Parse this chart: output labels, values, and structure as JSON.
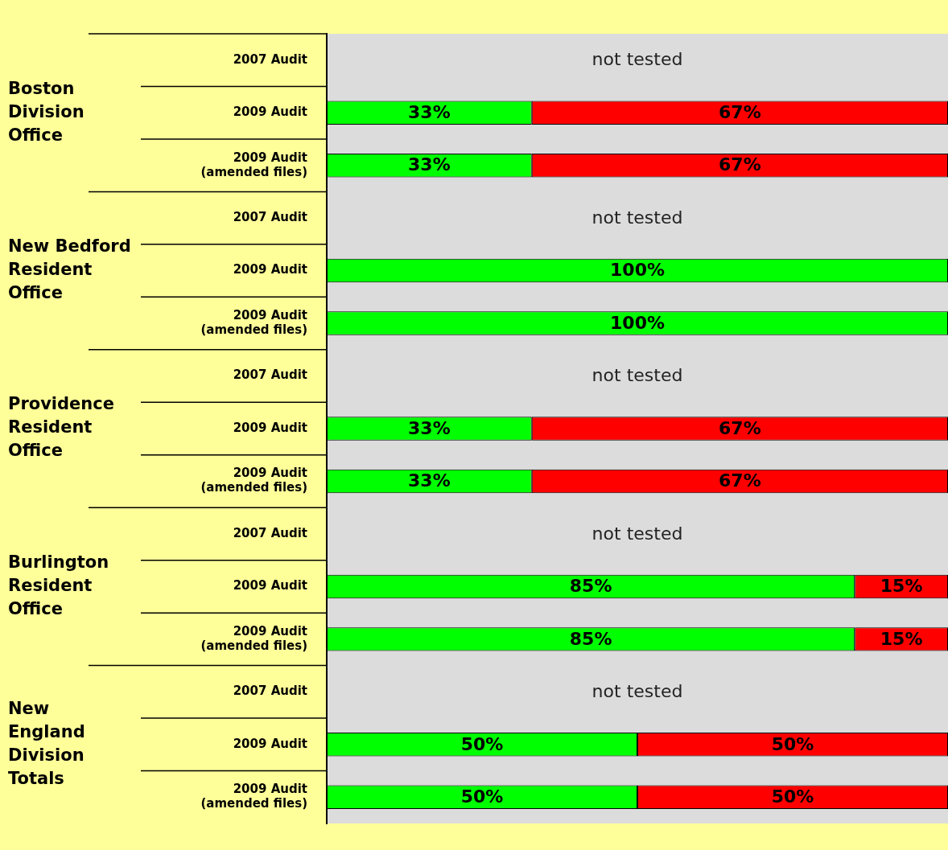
{
  "chart_data": {
    "type": "bar",
    "orientation": "horizontal",
    "stacked": true,
    "xlim": [
      0,
      100
    ],
    "tick_labels": "y",
    "grid": false,
    "legend": false,
    "categories": [
      "2007 Audit",
      "2009 Audit",
      "2009 Audit\n(amended files)",
      "2007 Audit",
      "2009 Audit",
      "2009 Audit\n(amended files)",
      "2007 Audit",
      "2009 Audit",
      "2009 Audit\n(amended files)",
      "2007 Audit",
      "2009 Audit",
      "2009 Audit\n(amended files)",
      "2007 Audit",
      "2009 Audit",
      "2009 Audit\n(amended files)"
    ],
    "series": [
      {
        "color": "#00ff00",
        "values": [
          null,
          33,
          33,
          null,
          100,
          100,
          null,
          33,
          33,
          null,
          85,
          85,
          null,
          50,
          50
        ],
        "value_labels": [
          "not tested",
          "33%",
          "33%",
          "not tested",
          "100%",
          "100%",
          "not tested",
          "33%",
          "33%",
          "not tested",
          "85%",
          "85%",
          "not tested",
          "50%",
          "50%"
        ]
      },
      {
        "color": "#ff0000",
        "values": [
          null,
          67,
          67,
          null,
          null,
          null,
          null,
          67,
          67,
          null,
          15,
          15,
          null,
          50,
          50
        ],
        "value_labels": [
          null,
          "67%",
          "67%",
          null,
          null,
          null,
          null,
          "67%",
          "67%",
          null,
          "15%",
          "15%",
          null,
          "50%",
          "50%"
        ]
      }
    ],
    "annotations": [
      "Boston\nDivision\nOffice",
      "New Bedford\nResident\nOffice",
      "Providence\nResident\nOffice",
      "Burlington\nResident\nOffice",
      "New\nEngland\nDivision\nTotals"
    ]
  }
}
